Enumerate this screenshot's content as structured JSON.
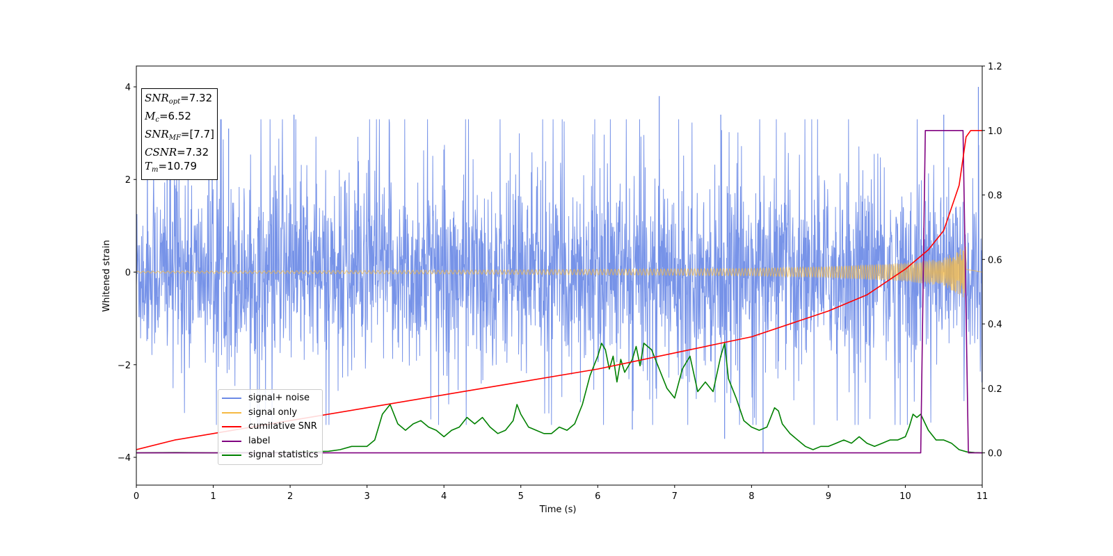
{
  "chart_data": {
    "type": "line",
    "title": "",
    "xlabel": "Time (s)",
    "ylabel": "Whitened strain",
    "xlim": [
      0,
      11
    ],
    "ylim": [
      -4.6,
      4.45
    ],
    "y2lim": [
      -0.1,
      1.2
    ],
    "xticks": [
      "0",
      "1",
      "2",
      "3",
      "4",
      "5",
      "6",
      "7",
      "8",
      "9",
      "10",
      "11"
    ],
    "yticks": [
      "−4",
      "−2",
      "0",
      "2",
      "4"
    ],
    "y2ticks": [
      "0.0",
      "0.2",
      "0.4",
      "0.6",
      "0.8",
      "1.0",
      "1.2"
    ],
    "legend_position": "lower-left",
    "annotation": {
      "snr_opt": "=7.32",
      "mc": "=6.52",
      "snr_mf": "=[7.7]",
      "csnr": "=7.32",
      "tm": "=10.79"
    },
    "series": [
      {
        "name": "signal+ noise",
        "axis": "left",
        "color": "#6b8ae6",
        "description": "whitened noise with amplitude approximately uniform, peaks between -3.6 and 4.0",
        "envelope_max": 2.0,
        "peak_points": [
          [
            0.4,
            3.1
          ],
          [
            1.2,
            3.1
          ],
          [
            2.05,
            3.4
          ],
          [
            6.8,
            3.8
          ],
          [
            7.6,
            3.4
          ],
          [
            10.5,
            3.4
          ],
          [
            10.95,
            4.0
          ],
          [
            8.15,
            -3.9
          ],
          [
            6.45,
            -3.4
          ],
          [
            7.65,
            -3.6
          ]
        ]
      },
      {
        "name": "signal only",
        "axis": "left",
        "color": "#f5b942",
        "description": "chirp waveform growing in amplitude until merger",
        "merger_time": 10.79,
        "amplitude_points": [
          [
            0,
            0.02
          ],
          [
            4,
            0.04
          ],
          [
            8,
            0.08
          ],
          [
            9,
            0.12
          ],
          [
            10,
            0.2
          ],
          [
            10.5,
            0.3
          ],
          [
            10.79,
            0.58
          ]
        ]
      },
      {
        "name": "cumilative SNR",
        "axis": "right",
        "color": "#ff0000",
        "x": [
          0,
          0.5,
          1,
          2,
          3,
          4,
          5,
          6,
          7,
          8,
          9,
          9.5,
          10,
          10.3,
          10.5,
          10.7,
          10.79,
          10.85,
          11
        ],
        "y": [
          0.01,
          0.04,
          0.06,
          0.1,
          0.14,
          0.18,
          0.22,
          0.26,
          0.31,
          0.36,
          0.44,
          0.49,
          0.57,
          0.63,
          0.69,
          0.83,
          0.98,
          1.0,
          1.0
        ]
      },
      {
        "name": "label",
        "axis": "right",
        "color": "#800080",
        "x": [
          0,
          10.2,
          10.26,
          10.75,
          10.82,
          11
        ],
        "y": [
          0,
          0,
          1,
          1,
          0,
          0
        ]
      },
      {
        "name": "signal statistics",
        "axis": "right",
        "color": "#008000",
        "x": [
          0,
          0.5,
          1,
          1.5,
          2,
          2.5,
          2.65,
          2.8,
          3.0,
          3.1,
          3.2,
          3.3,
          3.4,
          3.5,
          3.6,
          3.7,
          3.8,
          3.9,
          4.0,
          4.1,
          4.2,
          4.3,
          4.4,
          4.5,
          4.6,
          4.7,
          4.8,
          4.9,
          4.95,
          5.0,
          5.1,
          5.2,
          5.3,
          5.4,
          5.5,
          5.6,
          5.7,
          5.8,
          5.9,
          6.0,
          6.05,
          6.1,
          6.15,
          6.2,
          6.25,
          6.3,
          6.35,
          6.4,
          6.45,
          6.5,
          6.55,
          6.6,
          6.65,
          6.7,
          6.8,
          6.9,
          7.0,
          7.1,
          7.2,
          7.3,
          7.4,
          7.5,
          7.6,
          7.65,
          7.7,
          7.8,
          7.9,
          8.0,
          8.1,
          8.2,
          8.3,
          8.35,
          8.4,
          8.5,
          8.6,
          8.7,
          8.8,
          8.9,
          9.0,
          9.1,
          9.2,
          9.3,
          9.4,
          9.5,
          9.6,
          9.7,
          9.8,
          9.9,
          10.0,
          10.05,
          10.1,
          10.15,
          10.2,
          10.3,
          10.4,
          10.5,
          10.6,
          10.7,
          10.8,
          10.9,
          11
        ],
        "y": [
          0,
          0.001,
          0,
          0.001,
          0.002,
          0.005,
          0.01,
          0.02,
          0.02,
          0.04,
          0.12,
          0.15,
          0.09,
          0.07,
          0.09,
          0.1,
          0.08,
          0.07,
          0.05,
          0.07,
          0.08,
          0.11,
          0.09,
          0.11,
          0.08,
          0.06,
          0.07,
          0.1,
          0.15,
          0.12,
          0.08,
          0.07,
          0.06,
          0.06,
          0.08,
          0.07,
          0.09,
          0.15,
          0.24,
          0.3,
          0.34,
          0.32,
          0.26,
          0.3,
          0.22,
          0.29,
          0.25,
          0.27,
          0.29,
          0.33,
          0.27,
          0.34,
          0.33,
          0.32,
          0.26,
          0.2,
          0.17,
          0.26,
          0.3,
          0.19,
          0.22,
          0.19,
          0.3,
          0.34,
          0.23,
          0.17,
          0.1,
          0.08,
          0.07,
          0.08,
          0.14,
          0.13,
          0.09,
          0.06,
          0.04,
          0.02,
          0.01,
          0.02,
          0.02,
          0.03,
          0.04,
          0.03,
          0.05,
          0.03,
          0.02,
          0.03,
          0.04,
          0.04,
          0.05,
          0.08,
          0.12,
          0.11,
          0.12,
          0.07,
          0.04,
          0.04,
          0.03,
          0.01,
          0.003,
          0.001,
          0.0
        ]
      }
    ]
  }
}
